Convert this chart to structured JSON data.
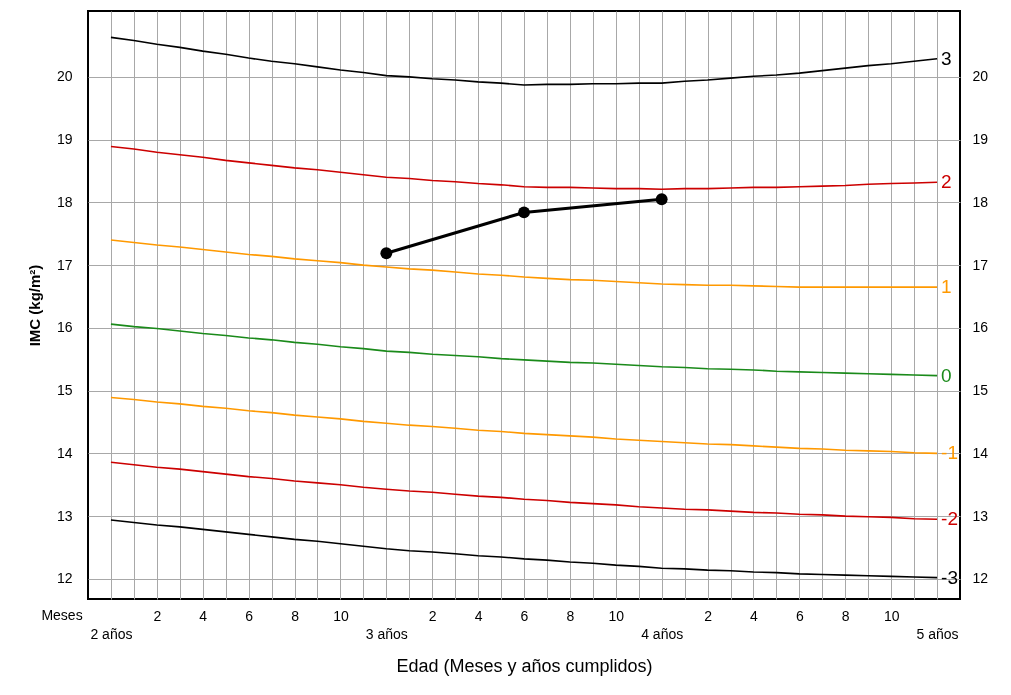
{
  "chart_data": {
    "type": "line",
    "xlabel": "Edad (Meses y años cumplidos)",
    "ylabel": "IMC (kg/m²)",
    "annotations": [
      "Meses"
    ],
    "categories": [
      "2 años",
      null,
      "2",
      null,
      "4",
      null,
      "6",
      null,
      "8",
      null,
      "10",
      null,
      "3 años",
      null,
      "2",
      null,
      "4",
      null,
      "6",
      null,
      "8",
      null,
      "10",
      null,
      "4 años",
      null,
      "2",
      null,
      "4",
      null,
      "6",
      null,
      "8",
      null,
      "10",
      null,
      "5 años"
    ],
    "series": [
      {
        "name": "3",
        "color": "#000000",
        "values": [
          20.63,
          20.58,
          20.52,
          20.47,
          20.41,
          20.36,
          20.3,
          20.25,
          20.21,
          20.16,
          20.11,
          20.07,
          20.02,
          20.0,
          19.97,
          19.95,
          19.92,
          19.9,
          19.87,
          19.88,
          19.88,
          19.89,
          19.89,
          19.9,
          19.9,
          19.93,
          19.95,
          19.98,
          20.01,
          20.03,
          20.06,
          20.1,
          20.14,
          20.18,
          20.21,
          20.25,
          20.29
        ]
      },
      {
        "name": "2",
        "color": "#cc0000",
        "values": [
          18.89,
          18.85,
          18.8,
          18.76,
          18.72,
          18.67,
          18.63,
          18.59,
          18.55,
          18.52,
          18.48,
          18.44,
          18.4,
          18.38,
          18.35,
          18.33,
          18.3,
          18.28,
          18.25,
          18.24,
          18.24,
          18.23,
          18.22,
          18.22,
          18.21,
          18.22,
          18.22,
          18.23,
          18.24,
          18.24,
          18.25,
          18.26,
          18.27,
          18.29,
          18.3,
          18.31,
          18.32
        ]
      },
      {
        "name": "1",
        "color": "#ff9900",
        "values": [
          17.4,
          17.36,
          17.32,
          17.29,
          17.25,
          17.21,
          17.17,
          17.14,
          17.1,
          17.07,
          17.04,
          17.0,
          16.97,
          16.94,
          16.92,
          16.89,
          16.86,
          16.84,
          16.81,
          16.79,
          16.77,
          16.76,
          16.74,
          16.72,
          16.7,
          16.69,
          16.68,
          16.68,
          16.67,
          16.66,
          16.65,
          16.65,
          16.65,
          16.65,
          16.65,
          16.65,
          16.65
        ]
      },
      {
        "name": "0",
        "color": "#1a8a1a",
        "values": [
          16.06,
          16.02,
          15.99,
          15.95,
          15.91,
          15.88,
          15.84,
          15.81,
          15.77,
          15.74,
          15.7,
          15.67,
          15.63,
          15.61,
          15.58,
          15.56,
          15.54,
          15.51,
          15.49,
          15.47,
          15.45,
          15.44,
          15.42,
          15.4,
          15.38,
          15.37,
          15.35,
          15.34,
          15.33,
          15.31,
          15.3,
          15.29,
          15.28,
          15.27,
          15.26,
          15.25,
          15.24
        ]
      },
      {
        "name": "-1",
        "color": "#ff9900",
        "values": [
          14.89,
          14.86,
          14.82,
          14.79,
          14.75,
          14.72,
          14.68,
          14.65,
          14.61,
          14.58,
          14.55,
          14.51,
          14.48,
          14.45,
          14.43,
          14.4,
          14.37,
          14.35,
          14.32,
          14.3,
          14.28,
          14.26,
          14.23,
          14.21,
          14.19,
          14.17,
          14.15,
          14.14,
          14.12,
          14.1,
          14.08,
          14.07,
          14.05,
          14.04,
          14.03,
          14.01,
          14.0
        ]
      },
      {
        "name": "-2",
        "color": "#cc0000",
        "values": [
          13.86,
          13.82,
          13.78,
          13.75,
          13.71,
          13.67,
          13.63,
          13.6,
          13.56,
          13.53,
          13.5,
          13.46,
          13.43,
          13.4,
          13.38,
          13.35,
          13.32,
          13.3,
          13.27,
          13.25,
          13.22,
          13.2,
          13.18,
          13.15,
          13.13,
          13.11,
          13.1,
          13.08,
          13.06,
          13.05,
          13.03,
          13.02,
          13.0,
          12.99,
          12.98,
          12.96,
          12.95
        ]
      },
      {
        "name": "-3",
        "color": "#000000",
        "values": [
          12.94,
          12.9,
          12.86,
          12.83,
          12.79,
          12.75,
          12.71,
          12.67,
          12.63,
          12.6,
          12.56,
          12.52,
          12.48,
          12.45,
          12.43,
          12.4,
          12.37,
          12.35,
          12.32,
          12.3,
          12.27,
          12.25,
          12.22,
          12.2,
          12.17,
          12.16,
          12.14,
          12.13,
          12.11,
          12.1,
          12.08,
          12.07,
          12.06,
          12.05,
          12.04,
          12.03,
          12.02
        ]
      },
      {
        "color": "#000000",
        "marker": "circle",
        "values": [
          null,
          null,
          null,
          null,
          null,
          null,
          null,
          null,
          null,
          null,
          null,
          null,
          17.19,
          null,
          null,
          null,
          null,
          null,
          17.84,
          null,
          null,
          null,
          null,
          null,
          18.05,
          null,
          null,
          null,
          null,
          null,
          null,
          null,
          null,
          null,
          null,
          null,
          null
        ]
      }
    ],
    "ylim": [
      11.68,
      21.05
    ],
    "yticks": [
      12,
      13,
      14,
      15,
      16,
      17,
      18,
      19,
      20
    ],
    "y2lim": [
      11.68,
      21.05
    ],
    "y2ticks": [
      12,
      13,
      14,
      15,
      16,
      17,
      18,
      19,
      20
    ],
    "grid": true
  }
}
